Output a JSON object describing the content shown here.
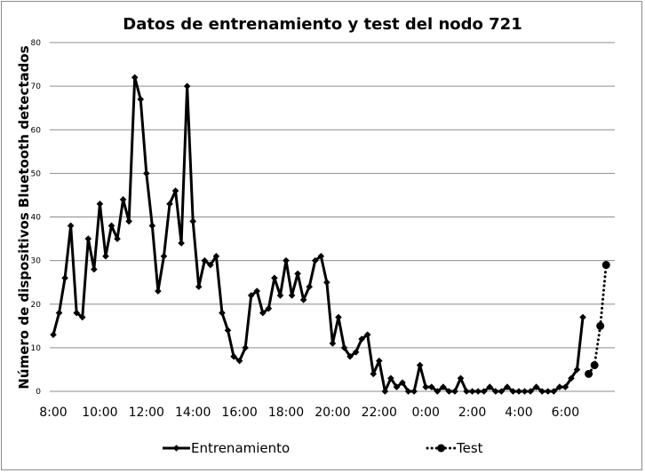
{
  "chart_data": {
    "type": "line",
    "title": "Datos de entrenamiento y test del nodo 721",
    "xlabel": "",
    "ylabel": "Número de dispositivos Bluetooth detectados",
    "ylim": [
      0,
      80
    ],
    "yticks": [
      0,
      10,
      20,
      30,
      40,
      50,
      60,
      70,
      80
    ],
    "xtick_labels": [
      "8:00",
      "10:00",
      "12:00",
      "14:00",
      "16:00",
      "18:00",
      "20:00",
      "22:00",
      "0:00",
      "2:00",
      "4:00",
      "6:00"
    ],
    "x_step_hours": 0.25,
    "grid": true,
    "legend_position": "bottom",
    "colors": {
      "line": "#000000",
      "grid": "#8c8c8c",
      "frame": "#8c8c8c"
    },
    "series": [
      {
        "name": "Entrenamiento",
        "style": "solid",
        "marker": "diamond",
        "x_start_index": 0,
        "values": [
          13,
          18,
          26,
          38,
          18,
          17,
          35,
          28,
          43,
          31,
          38,
          35,
          44,
          39,
          72,
          67,
          50,
          38,
          23,
          31,
          43,
          46,
          34,
          70,
          39,
          24,
          30,
          29,
          31,
          18,
          14,
          8,
          7,
          10,
          22,
          23,
          18,
          19,
          26,
          22,
          30,
          22,
          27,
          21,
          24,
          30,
          31,
          25,
          11,
          17,
          10,
          8,
          9,
          12,
          13,
          4,
          7,
          0,
          3,
          1,
          2,
          0,
          0,
          6,
          1,
          1,
          0,
          1,
          0,
          0,
          3,
          0,
          0,
          0,
          0,
          1,
          0,
          0,
          1,
          0,
          0,
          0,
          0,
          1,
          0,
          0,
          0,
          1,
          1,
          3,
          5,
          17
        ]
      },
      {
        "name": "Test",
        "style": "dotted",
        "marker": "circle",
        "x_start_index": 92,
        "values": [
          4,
          6,
          15,
          29
        ]
      }
    ]
  }
}
